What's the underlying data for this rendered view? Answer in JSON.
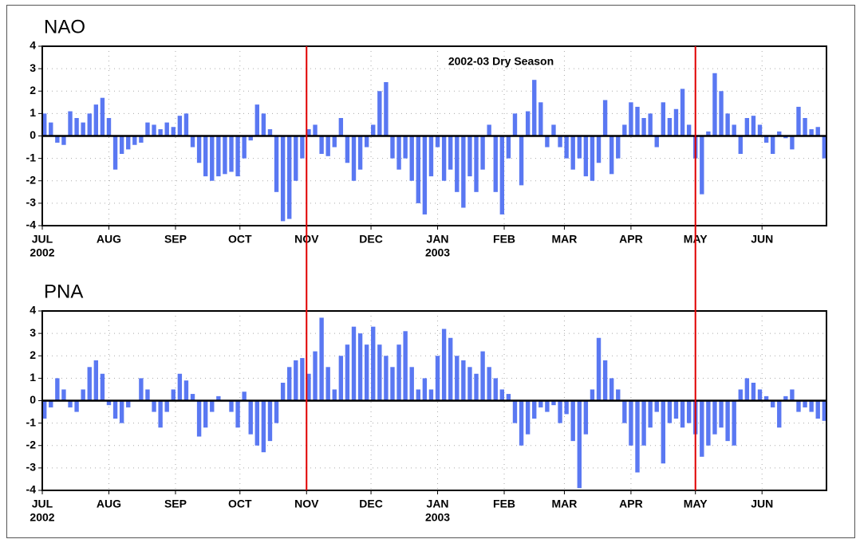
{
  "chart_data": [
    {
      "type": "bar",
      "title": "NAO",
      "title_color": "#ff2020",
      "annotation": "2002-03 Dry Season",
      "annotation_color": "#ff0000",
      "x": [
        0,
        3,
        6,
        9,
        12,
        15,
        18,
        21,
        24,
        27,
        30,
        33,
        36,
        39,
        42,
        45,
        48,
        51,
        54,
        57,
        60,
        63,
        66,
        69,
        72,
        75,
        78,
        81,
        84,
        87,
        90,
        93,
        96,
        99,
        102,
        105,
        108,
        111,
        114,
        117,
        120,
        123,
        126,
        129,
        132,
        135,
        138,
        141,
        144,
        147,
        150,
        153,
        156,
        159,
        162,
        165,
        168,
        171,
        174,
        177,
        180,
        183,
        186,
        189,
        192,
        195,
        198,
        201,
        204,
        207,
        210,
        213,
        216,
        219,
        222,
        225,
        228,
        231,
        234,
        237,
        240,
        243,
        246,
        249,
        252,
        255,
        258,
        261,
        264,
        267,
        270,
        273,
        276,
        279,
        282,
        285,
        288,
        291,
        294,
        297,
        300,
        303,
        306,
        309,
        312,
        315,
        318,
        321,
        324,
        327,
        330,
        333,
        336,
        339,
        342,
        345,
        348,
        351,
        354,
        357,
        360,
        363
      ],
      "values": [
        1.0,
        0.6,
        -0.3,
        -0.4,
        1.1,
        0.8,
        0.6,
        1.0,
        1.4,
        1.7,
        0.8,
        -1.5,
        -0.8,
        -0.6,
        -0.4,
        -0.3,
        0.6,
        0.5,
        0.3,
        0.6,
        0.4,
        0.9,
        1.0,
        -0.5,
        -1.2,
        -1.8,
        -2.0,
        -1.8,
        -1.7,
        -1.6,
        -1.8,
        -1.0,
        -0.2,
        1.4,
        1.0,
        0.3,
        -2.5,
        -3.8,
        -3.7,
        -2.0,
        -1.0,
        0.3,
        0.5,
        -0.8,
        -0.9,
        -0.5,
        0.8,
        -1.2,
        -2.0,
        -1.5,
        -0.5,
        0.5,
        2.0,
        2.4,
        -1.0,
        -1.5,
        -1.0,
        -2.0,
        -3.0,
        -3.5,
        -1.8,
        -0.5,
        -2.0,
        -1.5,
        -2.5,
        -3.2,
        -1.8,
        -2.5,
        -1.5,
        0.5,
        -2.5,
        -3.5,
        -1.0,
        1.0,
        -2.2,
        1.1,
        2.5,
        1.5,
        -0.5,
        0.5,
        -0.5,
        -1.0,
        -1.5,
        -1.0,
        -1.8,
        -2.0,
        -1.2,
        1.6,
        -1.7,
        -1.0,
        0.5,
        1.5,
        1.3,
        0.8,
        1.0,
        -0.5,
        1.5,
        0.8,
        1.2,
        2.1,
        0.5,
        -1.0,
        -2.6,
        0.2,
        2.8,
        2.0,
        1.0,
        0.5,
        -0.8,
        0.8,
        0.9,
        0.5,
        -0.3,
        -0.8,
        0.2,
        -0.1,
        -0.6,
        1.3,
        0.8,
        0.3,
        0.4,
        -1.0
      ],
      "color": "#5a78f2",
      "xlim": [
        0,
        365
      ],
      "xticks": [
        {
          "value": 0,
          "label": "JUL",
          "year": "2002"
        },
        {
          "value": 31,
          "label": "AUG"
        },
        {
          "value": 62,
          "label": "SEP"
        },
        {
          "value": 92,
          "label": "OCT"
        },
        {
          "value": 123,
          "label": "NOV"
        },
        {
          "value": 153,
          "label": "DEC"
        },
        {
          "value": 184,
          "label": "JAN",
          "year": "2003"
        },
        {
          "value": 215,
          "label": "FEB"
        },
        {
          "value": 243,
          "label": "MAR"
        },
        {
          "value": 274,
          "label": "APR"
        },
        {
          "value": 304,
          "label": "MAY"
        },
        {
          "value": 335,
          "label": "JUN"
        }
      ],
      "ylim": [
        -4,
        4
      ],
      "yticks": [
        -4,
        -3,
        -2,
        -1,
        0,
        1,
        2,
        3,
        4
      ],
      "grid": true,
      "markers": [
        123,
        304
      ],
      "marker_color": "#e00000"
    },
    {
      "type": "bar",
      "title": "PNA",
      "title_color": "#ff2020",
      "x": [
        0,
        3,
        6,
        9,
        12,
        15,
        18,
        21,
        24,
        27,
        30,
        33,
        36,
        39,
        42,
        45,
        48,
        51,
        54,
        57,
        60,
        63,
        66,
        69,
        72,
        75,
        78,
        81,
        84,
        87,
        90,
        93,
        96,
        99,
        102,
        105,
        108,
        111,
        114,
        117,
        120,
        123,
        126,
        129,
        132,
        135,
        138,
        141,
        144,
        147,
        150,
        153,
        156,
        159,
        162,
        165,
        168,
        171,
        174,
        177,
        180,
        183,
        186,
        189,
        192,
        195,
        198,
        201,
        204,
        207,
        210,
        213,
        216,
        219,
        222,
        225,
        228,
        231,
        234,
        237,
        240,
        243,
        246,
        249,
        252,
        255,
        258,
        261,
        264,
        267,
        270,
        273,
        276,
        279,
        282,
        285,
        288,
        291,
        294,
        297,
        300,
        303,
        306,
        309,
        312,
        315,
        318,
        321,
        324,
        327,
        330,
        333,
        336,
        339,
        342,
        345,
        348,
        351,
        354,
        357,
        360,
        363
      ],
      "values": [
        -0.8,
        -0.3,
        1.0,
        0.5,
        -0.3,
        -0.5,
        0.5,
        1.5,
        1.8,
        1.2,
        -0.2,
        -0.8,
        -1.0,
        -0.3,
        0.0,
        1.0,
        0.5,
        -0.5,
        -1.2,
        -0.5,
        0.5,
        1.2,
        0.9,
        0.3,
        -1.6,
        -1.2,
        -0.5,
        0.2,
        0.0,
        -0.5,
        -1.2,
        0.4,
        -1.5,
        -2.0,
        -2.3,
        -1.8,
        -1.0,
        0.8,
        1.5,
        1.8,
        1.9,
        1.2,
        2.2,
        3.7,
        1.5,
        0.5,
        2.0,
        2.5,
        3.3,
        3.0,
        2.5,
        3.3,
        2.5,
        2.0,
        1.5,
        2.5,
        3.1,
        1.5,
        0.5,
        1.0,
        0.5,
        2.0,
        3.2,
        2.8,
        2.0,
        1.8,
        1.5,
        1.2,
        2.2,
        1.5,
        1.0,
        0.5,
        0.3,
        -1.0,
        -2.0,
        -1.5,
        -0.8,
        -0.3,
        -0.5,
        -0.2,
        -1.0,
        -0.6,
        -1.8,
        -3.9,
        -1.5,
        0.5,
        2.8,
        1.8,
        1.0,
        0.5,
        -1.0,
        -2.0,
        -3.2,
        -2.0,
        -1.2,
        -0.5,
        -2.8,
        -1.0,
        -0.8,
        -1.2,
        -1.0,
        -1.5,
        -2.5,
        -2.0,
        -1.5,
        -1.2,
        -1.8,
        -2.0,
        0.5,
        1.0,
        0.8,
        0.5,
        0.2,
        -0.3,
        -1.2,
        0.2,
        0.5,
        -0.5,
        -0.3,
        -0.5,
        -0.8,
        -0.9
      ],
      "color": "#5a78f2",
      "xlim": [
        0,
        365
      ],
      "xticks": [
        {
          "value": 0,
          "label": "JUL",
          "year": "2002"
        },
        {
          "value": 31,
          "label": "AUG"
        },
        {
          "value": 62,
          "label": "SEP"
        },
        {
          "value": 92,
          "label": "OCT"
        },
        {
          "value": 123,
          "label": "NOV"
        },
        {
          "value": 153,
          "label": "DEC"
        },
        {
          "value": 184,
          "label": "JAN",
          "year": "2003"
        },
        {
          "value": 215,
          "label": "FEB"
        },
        {
          "value": 243,
          "label": "MAR"
        },
        {
          "value": 274,
          "label": "APR"
        },
        {
          "value": 304,
          "label": "MAY"
        },
        {
          "value": 335,
          "label": "JUN"
        }
      ],
      "ylim": [
        -4,
        4
      ],
      "yticks": [
        -4,
        -3,
        -2,
        -1,
        0,
        1,
        2,
        3,
        4
      ],
      "grid": true,
      "markers": [
        123,
        304
      ],
      "marker_color": "#e00000"
    }
  ]
}
